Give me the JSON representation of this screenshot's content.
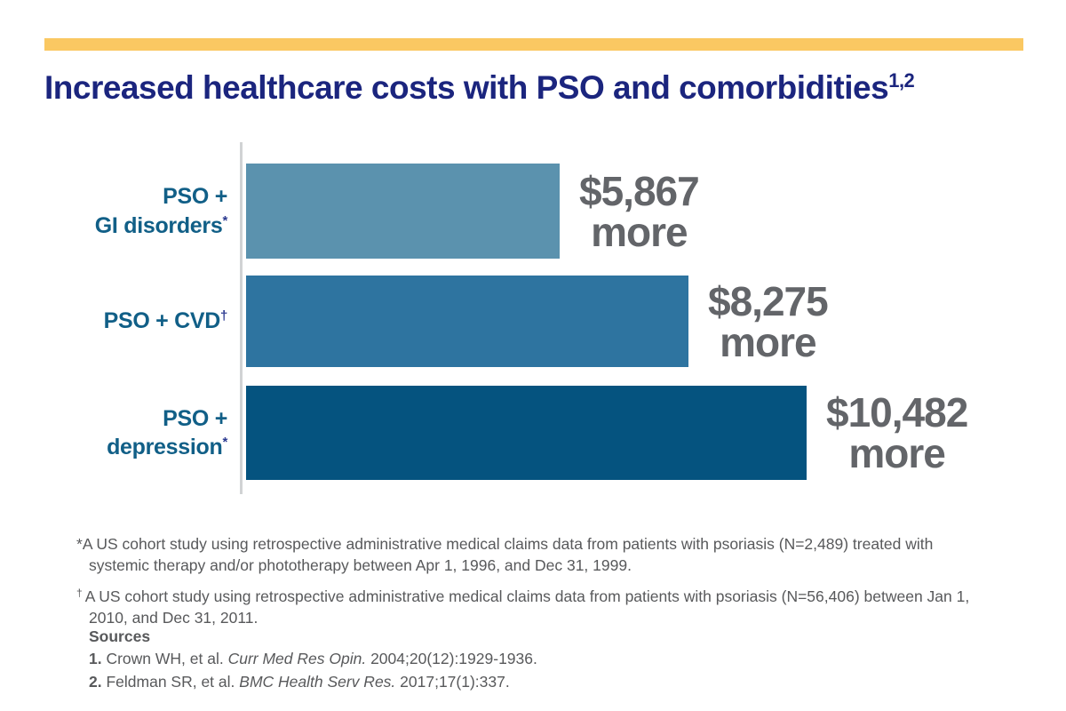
{
  "accent_bar_color": "#fac862",
  "title": {
    "text": "Increased healthcare costs with PSO and comorbidities",
    "superscript": "1,2"
  },
  "chart_data": {
    "type": "bar",
    "orientation": "horizontal",
    "title": "Increased healthcare costs with PSO and comorbidities",
    "title_reference_marks": "1,2",
    "categories": [
      "PSO + GI disorders*",
      "PSO + CVD†",
      "PSO + depression*"
    ],
    "values": [
      5867,
      8275,
      10482
    ],
    "value_labels": [
      "$5,867 more",
      "$8,275 more",
      "$10,482 more"
    ],
    "xlim": [
      0,
      10482
    ],
    "grid": false,
    "legend": "none",
    "axis_color": "#d1d3d4",
    "bars": [
      {
        "label_line1": "PSO +",
        "sup1": "",
        "label_line2": "GI disorders",
        "sup2": "*",
        "value": 5867,
        "amount": "$5,867",
        "more": "more",
        "color": "#5b92ae"
      },
      {
        "label_line1": "PSO + CVD",
        "sup1": "†",
        "label_line2": "",
        "sup2": "",
        "value": 8275,
        "amount": "$8,275",
        "more": "more",
        "color": "#2e74a0"
      },
      {
        "label_line1": "PSO +",
        "sup1": "",
        "label_line2": "depression",
        "sup2": "*",
        "value": 10482,
        "amount": "$10,482",
        "more": "more",
        "color": "#05537f"
      }
    ]
  },
  "footnotes": [
    {
      "mark": "*",
      "text": "A US cohort study using retrospective administrative medical claims data from patients with psoriasis (N=2,489) treated with systemic therapy and/or phototherapy between Apr 1, 1996, and Dec 31, 1999."
    },
    {
      "mark": "†",
      "text": "A US cohort study using retrospective administrative medical claims data from patients with psoriasis (N=56,406) between Jan 1, 2010, and Dec 31, 2011."
    }
  ],
  "sources": {
    "heading": "Sources",
    "items": [
      {
        "num": "1.",
        "authors": " Crown WH, et al. ",
        "journal": "Curr Med Res Opin.",
        "citation": " 2004;20(12):1929-1936."
      },
      {
        "num": "2.",
        "authors": " Feldman SR, et al. ",
        "journal": "BMC Health Serv Res.",
        "citation": " 2017;17(1):337."
      }
    ]
  }
}
